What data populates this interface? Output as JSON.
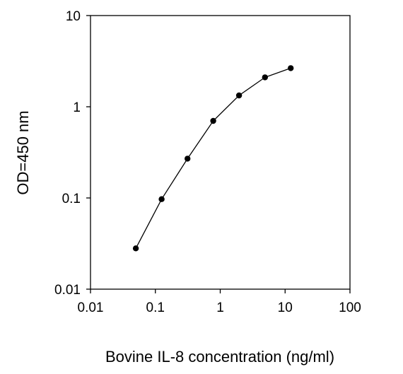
{
  "chart_data": {
    "type": "line",
    "title": "",
    "xlabel": "Bovine IL-8 concentration (ng/ml)",
    "ylabel": "OD=450 nm",
    "x_scale": "log",
    "y_scale": "log",
    "xlim": [
      0.01,
      100
    ],
    "ylim": [
      0.01,
      10
    ],
    "x_ticks": [
      "0.01",
      "0.1",
      "1",
      "10",
      "100"
    ],
    "y_ticks": [
      "0.01",
      "0.1",
      "1",
      "10"
    ],
    "grid": false,
    "legend": "none",
    "series": [
      {
        "x": [
          0.05,
          0.125,
          0.3125,
          0.78,
          1.95,
          4.9,
          12.2
        ],
        "y": [
          0.028,
          0.097,
          0.27,
          0.7,
          1.33,
          2.1,
          2.65
        ]
      }
    ],
    "colors": {
      "line": "#000000",
      "marker": "#000000",
      "axis": "#000000"
    }
  }
}
